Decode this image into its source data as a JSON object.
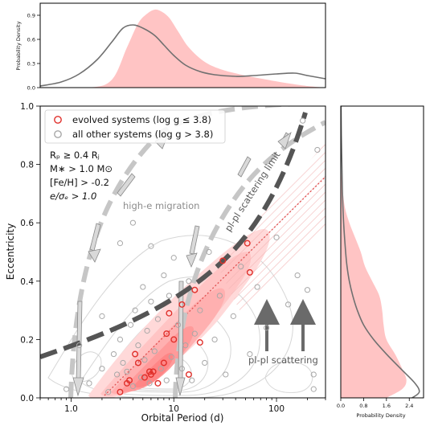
{
  "colors": {
    "kde_fill": "#ffc4c4",
    "kde_line": "#707070",
    "evolved": "#e0302b",
    "other": "#a8a8a8",
    "scatter_limit": "#555555",
    "migration": "#c6c6c6",
    "fit_line": "#e05050",
    "hatch": "#f2b4b4",
    "arrow_dark": "#6a6a6a"
  },
  "legend": {
    "evolved": "evolved systems (log g  ≤  3.8)",
    "other": "all other systems (log g  >  3.8)"
  },
  "conditions": [
    "Rₚ  ≥  0.4 Rⱼ",
    "M∗ > 1.0 M⊙",
    "[Fe/H] > -0.2",
    "e/σₑ > 1.0"
  ],
  "annotations": {
    "migration": "high-e migration",
    "scatter_limit": "pl-pl scattering limit",
    "scattering": "pl-pl scattering"
  },
  "chart_data": [
    {
      "type": "scatter",
      "xlabel": "Orbital Period (d)",
      "ylabel": "Eccentricity",
      "xscale": "log",
      "xlim": [
        0.5,
        300
      ],
      "ylim": [
        0,
        1.0
      ],
      "x_ticks": [
        1,
        10,
        100
      ],
      "x_tick_labels": [
        "1.0",
        "10",
        "100"
      ],
      "y_ticks": [
        0,
        0.2,
        0.4,
        0.6,
        0.8,
        1.0
      ],
      "y_tick_labels": [
        "0.0",
        "0.2",
        "0.4",
        "0.6",
        "0.8",
        "1.0"
      ],
      "legend_position": "top-left",
      "series": [
        {
          "name": "evolved systems (log g  ≤  3.8)",
          "points": [
            [
              3.0,
              0.02
            ],
            [
              3.5,
              0.05
            ],
            [
              3.7,
              0.06
            ],
            [
              4.2,
              0.15
            ],
            [
              4.5,
              0.12
            ],
            [
              5.2,
              0.07
            ],
            [
              5.8,
              0.09
            ],
            [
              6.0,
              0.08
            ],
            [
              6.3,
              0.09
            ],
            [
              7.0,
              0.05
            ],
            [
              8.0,
              0.12
            ],
            [
              8.5,
              0.22
            ],
            [
              9.0,
              0.29
            ],
            [
              10.0,
              0.2
            ],
            [
              12.0,
              0.32
            ],
            [
              14.0,
              0.08
            ],
            [
              16.0,
              0.37
            ],
            [
              18.0,
              0.19
            ],
            [
              30.0,
              0.47
            ],
            [
              52.0,
              0.53
            ],
            [
              55.0,
              0.43
            ]
          ]
        },
        {
          "name": "all other systems (log g  >  3.8)",
          "points": [
            [
              1.5,
              0.05
            ],
            [
              2.0,
              0.1
            ],
            [
              2.3,
              0.02
            ],
            [
              2.6,
              0.15
            ],
            [
              2.8,
              0.08
            ],
            [
              3.0,
              0.2
            ],
            [
              3.2,
              0.12
            ],
            [
              3.5,
              0.09
            ],
            [
              3.8,
              0.25
            ],
            [
              4.0,
              0.04
            ],
            [
              4.2,
              0.3
            ],
            [
              4.5,
              0.18
            ],
            [
              4.8,
              0.07
            ],
            [
              5.0,
              0.38
            ],
            [
              5.2,
              0.13
            ],
            [
              5.5,
              0.23
            ],
            [
              5.8,
              0.05
            ],
            [
              6.0,
              0.33
            ],
            [
              6.5,
              0.16
            ],
            [
              7.0,
              0.27
            ],
            [
              7.5,
              0.1
            ],
            [
              8.0,
              0.42
            ],
            [
              8.5,
              0.06
            ],
            [
              9.0,
              0.35
            ],
            [
              9.5,
              0.14
            ],
            [
              10.0,
              0.48
            ],
            [
              11.0,
              0.25
            ],
            [
              12.0,
              0.1
            ],
            [
              13.0,
              0.18
            ],
            [
              14.0,
              0.4
            ],
            [
              15.0,
              0.06
            ],
            [
              16.0,
              0.22
            ],
            [
              18.0,
              0.3
            ],
            [
              20.0,
              0.12
            ],
            [
              22.0,
              0.5
            ],
            [
              25.0,
              0.2
            ],
            [
              28.0,
              0.35
            ],
            [
              32.0,
              0.08
            ],
            [
              38.0,
              0.28
            ],
            [
              45.0,
              0.45
            ],
            [
              55.0,
              0.15
            ],
            [
              65.0,
              0.38
            ],
            [
              80.0,
              0.24
            ],
            [
              100.0,
              0.55
            ],
            [
              130.0,
              0.32
            ],
            [
              160.0,
              0.42
            ],
            [
              200.0,
              0.37
            ],
            [
              250.0,
              0.85
            ],
            [
              180.0,
              0.95
            ],
            [
              4.0,
              0.6
            ],
            [
              3.0,
              0.53
            ],
            [
              6.0,
              0.52
            ],
            [
              2.0,
              0.28
            ],
            [
              1.2,
              0.18
            ],
            [
              0.9,
              0.03
            ],
            [
              230.0,
              0.03
            ],
            [
              230.0,
              0.08
            ]
          ]
        }
      ]
    },
    {
      "type": "area",
      "ylabel": "Probability Density",
      "xscale": "log",
      "xlim": [
        0.5,
        300
      ],
      "y_ticks": [
        0,
        0.3,
        0.6,
        0.9
      ],
      "y_tick_labels": [
        "0.0",
        "0.3",
        "0.6",
        "0.9"
      ],
      "series": [
        {
          "name": "evolved",
          "x": [
            0.5,
            1.5,
            2.5,
            3.5,
            4.5,
            5.5,
            6.5,
            7.5,
            9,
            11,
            14,
            20,
            30,
            50,
            80,
            120,
            200,
            300
          ],
          "values": [
            0,
            0.0,
            0.1,
            0.5,
            0.8,
            0.92,
            0.97,
            0.95,
            0.87,
            0.7,
            0.5,
            0.32,
            0.22,
            0.15,
            0.1,
            0.06,
            0.02,
            0
          ]
        },
        {
          "name": "other",
          "x": [
            0.5,
            0.8,
            1.2,
            1.8,
            2.5,
            3.2,
            4.0,
            5.0,
            6.5,
            8,
            10,
            13,
            18,
            25,
            40,
            60,
            100,
            150,
            200,
            300
          ],
          "values": [
            0.02,
            0.07,
            0.17,
            0.35,
            0.57,
            0.74,
            0.78,
            0.74,
            0.65,
            0.53,
            0.4,
            0.28,
            0.2,
            0.16,
            0.14,
            0.15,
            0.17,
            0.18,
            0.15,
            0.11
          ]
        }
      ]
    },
    {
      "type": "area",
      "xlabel": "Probability Density",
      "xlim": [
        0,
        2.9
      ],
      "x_ticks": [
        0,
        0.8,
        1.6,
        2.4
      ],
      "x_tick_labels": [
        "0.0",
        "0.8",
        "1.6",
        "2.4"
      ],
      "series": [
        {
          "name": "evolved",
          "y": [
            0,
            0.03,
            0.06,
            0.1,
            0.15,
            0.2,
            0.25,
            0.3,
            0.35,
            0.4,
            0.45,
            0.5,
            0.55,
            0.6,
            0.65,
            0.7,
            0.75,
            0.8,
            0.9,
            1.0
          ],
          "values": [
            1.6,
            2.15,
            2.3,
            2.15,
            1.9,
            1.6,
            1.5,
            1.45,
            1.35,
            1.1,
            0.85,
            0.7,
            0.5,
            0.3,
            0.15,
            0.08,
            0.03,
            0.01,
            0,
            0
          ]
        },
        {
          "name": "other",
          "y": [
            0,
            0.02,
            0.05,
            0.1,
            0.15,
            0.2,
            0.25,
            0.3,
            0.35,
            0.4,
            0.45,
            0.5,
            0.6,
            0.7,
            0.8,
            0.9,
            1.0
          ],
          "values": [
            2.5,
            2.75,
            2.6,
            2.1,
            1.6,
            1.15,
            0.8,
            0.58,
            0.42,
            0.3,
            0.22,
            0.17,
            0.1,
            0.06,
            0.04,
            0.02,
            0.01
          ]
        }
      ]
    }
  ]
}
